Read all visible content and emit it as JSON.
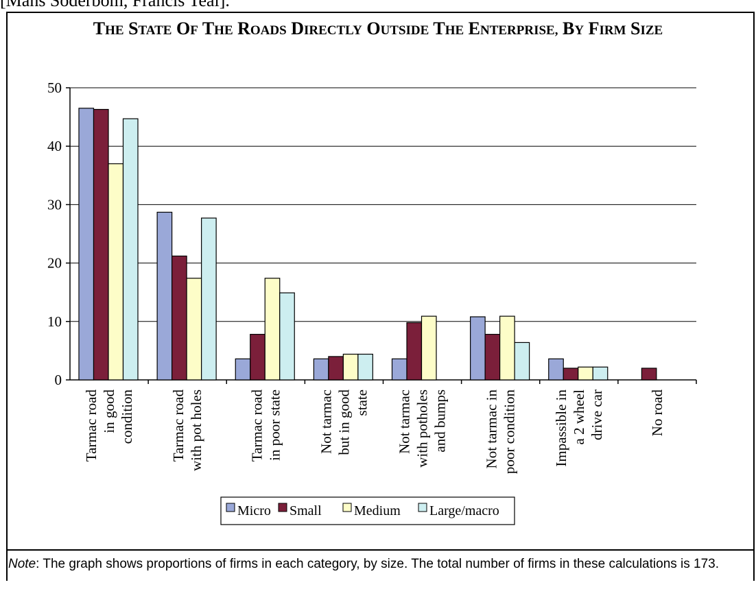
{
  "header_fragment": "[Mans Söderbom, Francis Teal].",
  "chart_data": {
    "type": "bar",
    "title": "The State of the Roads Directly Outside the Enterprise, By Firm Size",
    "xlabel": "",
    "ylabel": "",
    "ylim": [
      0,
      50
    ],
    "yticks": [
      0,
      10,
      20,
      30,
      40,
      50
    ],
    "grid": true,
    "legend_position": "bottom",
    "categories": [
      [
        "Tarmac road",
        "in good",
        "condition"
      ],
      [
        "Tarmac road",
        "with pot holes"
      ],
      [
        "Tarmac road",
        "in poor state"
      ],
      [
        "Not tarmac",
        "but in good",
        "state"
      ],
      [
        "Not tarmac",
        "with potholes",
        "and bumps"
      ],
      [
        "Not tarmac in",
        "poor condition"
      ],
      [
        "Impassible in",
        "a 2 wheel",
        "drive car"
      ],
      [
        "No road"
      ]
    ],
    "series": [
      {
        "name": "Micro",
        "color": "#9aa8d8",
        "values": [
          46.5,
          28.7,
          3.6,
          3.6,
          3.6,
          10.8,
          3.6,
          0
        ]
      },
      {
        "name": "Small",
        "color": "#7b1f3a",
        "values": [
          46.3,
          21.2,
          7.8,
          4.0,
          9.8,
          7.8,
          2.0,
          2.0
        ]
      },
      {
        "name": "Medium",
        "color": "#fdfdc8",
        "values": [
          37.0,
          17.4,
          17.4,
          4.4,
          10.9,
          10.9,
          2.2,
          0
        ]
      },
      {
        "name": "Large/macro",
        "color": "#cdeef0",
        "values": [
          44.7,
          27.7,
          14.9,
          4.4,
          0,
          6.4,
          2.2,
          0
        ]
      }
    ]
  },
  "note": {
    "lead": "Note",
    "text": ": The graph shows proportions of firms in each category, by size. The total number of firms in these calculations is 173."
  }
}
